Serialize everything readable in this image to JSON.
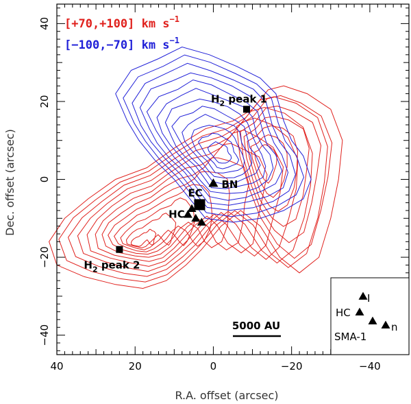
{
  "chart_data": {
    "type": "contour",
    "xlabel": "R.A. offset (arcsec)",
    "ylabel": "Dec. offset (arcsec)",
    "xlim": [
      40,
      -50
    ],
    "ylim": [
      -45,
      45
    ],
    "x_ticks": [
      40,
      20,
      0,
      -20,
      -40
    ],
    "y_ticks": [
      40,
      20,
      0,
      -20,
      -40
    ],
    "x_tick_labels": [
      "40",
      "20",
      "0",
      "−20",
      "−40"
    ],
    "y_tick_labels": [
      "40",
      "20",
      "0",
      "−20",
      "−40"
    ],
    "legend": [
      {
        "label": "[+70,+100]",
        "unit": "km s",
        "exp": "−1",
        "color": "#e0201c"
      },
      {
        "label": "[−100,−70]",
        "unit": "km s",
        "exp": "−1",
        "color": "#2020d8"
      }
    ],
    "series": [
      {
        "name": "[+70,+100] km s−1",
        "color": "#e0201c",
        "contour_levels": 12,
        "peaks": [
          {
            "x": 20,
            "y": -17
          },
          {
            "x": -12,
            "y": 5
          }
        ],
        "outer_contour": [
          [
            42,
            -16
          ],
          [
            38,
            -10
          ],
          [
            32,
            -5
          ],
          [
            25,
            0
          ],
          [
            17,
            3
          ],
          [
            10,
            8
          ],
          [
            2,
            13
          ],
          [
            -5,
            15
          ],
          [
            -10,
            18
          ],
          [
            -14,
            23
          ],
          [
            -18,
            24
          ],
          [
            -24,
            22
          ],
          [
            -30,
            18
          ],
          [
            -33,
            10
          ],
          [
            -32,
            0
          ],
          [
            -30,
            -10
          ],
          [
            -27,
            -20
          ],
          [
            -22,
            -24
          ],
          [
            -17,
            -20
          ],
          [
            -12,
            -12
          ],
          [
            -7,
            -8
          ],
          [
            -2,
            -12
          ],
          [
            3,
            -18
          ],
          [
            7,
            -22
          ],
          [
            12,
            -26
          ],
          [
            18,
            -28
          ],
          [
            25,
            -27
          ],
          [
            33,
            -25
          ],
          [
            40,
            -22
          ]
        ]
      },
      {
        "name": "[−100,−70] km s−1",
        "color": "#2020d8",
        "contour_levels": 12,
        "peaks": [
          {
            "x": -2,
            "y": 6
          }
        ],
        "outer_contour": [
          [
            25,
            22
          ],
          [
            21,
            28
          ],
          [
            14,
            31
          ],
          [
            8,
            34
          ],
          [
            1,
            32
          ],
          [
            -6,
            29
          ],
          [
            -12,
            26
          ],
          [
            -16,
            22
          ],
          [
            -18,
            15
          ],
          [
            -20,
            10
          ],
          [
            -23,
            6
          ],
          [
            -25,
            0
          ],
          [
            -23,
            -5
          ],
          [
            -18,
            -8
          ],
          [
            -12,
            -10
          ],
          [
            -5,
            -11
          ],
          [
            2,
            -10
          ],
          [
            6,
            -5
          ],
          [
            10,
            0
          ],
          [
            15,
            5
          ],
          [
            19,
            10
          ],
          [
            22,
            15
          ]
        ]
      }
    ],
    "markers": [
      {
        "label": "H2 peak 1",
        "sub": "2",
        "label_text": [
          "H",
          "2",
          " peak 1"
        ],
        "shape": "square",
        "x": -8.5,
        "y": 18
      },
      {
        "label": "H2 peak 2",
        "sub": "2",
        "label_text": [
          "H",
          "2",
          " peak 2"
        ],
        "shape": "square",
        "x": 24,
        "y": -18
      },
      {
        "label": "EC",
        "shape": "square-large",
        "x": 3.5,
        "y": -6.5
      },
      {
        "label": "BN",
        "shape": "triangle",
        "x": 0,
        "y": -1
      },
      {
        "label": "HC",
        "shape": "triangle",
        "x": 6,
        "y": -9
      }
    ],
    "triangles": [
      {
        "x": 5.5,
        "y": -7.5
      },
      {
        "x": 6.5,
        "y": -9
      },
      {
        "x": 4.5,
        "y": -10
      },
      {
        "x": 3,
        "y": -11
      }
    ],
    "inset": {
      "labels": [
        "I",
        "HC",
        "n",
        "SMA-1"
      ]
    },
    "scale_bar": {
      "label": "5000 AU"
    }
  }
}
